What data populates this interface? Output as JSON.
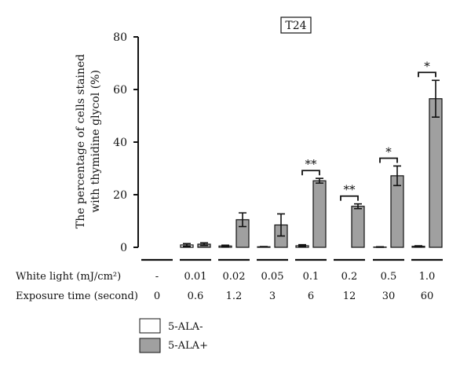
{
  "chart_data": {
    "type": "bar",
    "title": "T24",
    "ylabel_line1": "The percentage of cells stained",
    "ylabel_line2": "with thymidine glycol (%)",
    "ylim": [
      0,
      80
    ],
    "yticks": [
      0,
      20,
      40,
      60,
      80
    ],
    "grid": false,
    "legend_position": "bottom-left",
    "row1_label": "White light (mJ/cm²)",
    "row2_label": "Exposure time (second)",
    "categories": [
      "-",
      "0.01",
      "0.02",
      "0.05",
      "0.1",
      "0.2",
      "0.5",
      "1.0"
    ],
    "exposure_times": [
      "0",
      "0.6",
      "1.2",
      "3",
      "6",
      "12",
      "30",
      "60"
    ],
    "series": [
      {
        "name": "5-ALA-",
        "color": "#ffffff",
        "values": [
          0,
          0.9,
          0.5,
          0.2,
          0.6,
          0,
          0.1,
          0.4
        ],
        "errors": [
          0,
          0.5,
          0.3,
          0.1,
          0.4,
          0,
          0.1,
          0.2
        ]
      },
      {
        "name": "5-ALA+",
        "color": "#a0a0a0",
        "values": [
          0,
          1.2,
          10.5,
          8.5,
          25.3,
          15.6,
          27.2,
          56.5
        ],
        "errors": [
          0,
          0.5,
          2.6,
          4.2,
          0.9,
          0.9,
          3.7,
          7.0
        ]
      }
    ],
    "significance": [
      {
        "category_index": 4,
        "label": "**"
      },
      {
        "category_index": 5,
        "label": "**"
      },
      {
        "category_index": 6,
        "label": "*"
      },
      {
        "category_index": 7,
        "label": "*"
      }
    ]
  }
}
